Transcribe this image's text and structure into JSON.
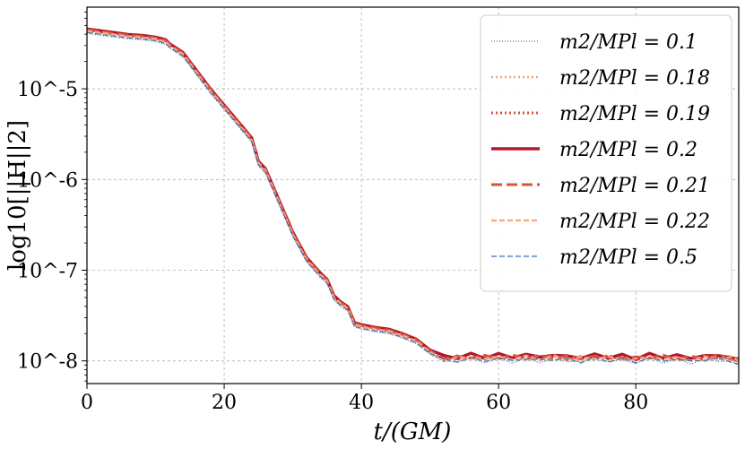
{
  "chart_data": {
    "type": "line",
    "xlabel": "t/(GM)",
    "ylabel": "log10[||H||2]",
    "xlim": [
      0,
      95
    ],
    "ylim": [
      -8.25,
      -4.1
    ],
    "yscale": "log",
    "grid": true,
    "legend_position": "top-right",
    "x_ticks": [
      0,
      20,
      40,
      60,
      80
    ],
    "y_ticks": [
      {
        "value": -5,
        "label": "10^-5"
      },
      {
        "value": -6,
        "label": "10^-6"
      },
      {
        "value": -7,
        "label": "10^-7"
      },
      {
        "value": -8,
        "label": "10^-8"
      }
    ],
    "series": [
      {
        "name": "m2/MPl = 0.1",
        "color": "#3a6fb5",
        "style": "dotted",
        "width": 1.2,
        "offset": -0.03
      },
      {
        "name": "m2/MPl = 0.18",
        "color": "#f1a57c",
        "style": "dotted",
        "width": 2.4,
        "offset": -0.01
      },
      {
        "name": "m2/MPl = 0.19",
        "color": "#d8543f",
        "style": "dotted",
        "width": 3.0,
        "offset": 0.005
      },
      {
        "name": "m2/MPl = 0.2",
        "color": "#b2182b",
        "style": "solid",
        "width": 3.4,
        "offset": 0.02
      },
      {
        "name": "m2/MPl = 0.21",
        "color": "#d8543f",
        "style": "dashed",
        "width": 3.0,
        "offset": 0.01
      },
      {
        "name": "m2/MPl = 0.22",
        "color": "#f4a582",
        "style": "dashed",
        "width": 2.2,
        "offset": 0.0
      },
      {
        "name": "m2/MPl = 0.5",
        "color": "#3a6fb5",
        "style": "dashed",
        "width": 1.2,
        "offset": -0.02
      }
    ],
    "base_curve": [
      [
        0,
        -4.36
      ],
      [
        2,
        -4.38
      ],
      [
        4,
        -4.4
      ],
      [
        6,
        -4.42
      ],
      [
        8,
        -4.43
      ],
      [
        10,
        -4.45
      ],
      [
        11.5,
        -4.48
      ],
      [
        12,
        -4.52
      ],
      [
        14,
        -4.62
      ],
      [
        16,
        -4.82
      ],
      [
        18,
        -5.02
      ],
      [
        20,
        -5.2
      ],
      [
        22,
        -5.38
      ],
      [
        24,
        -5.56
      ],
      [
        25,
        -5.82
      ],
      [
        26,
        -5.9
      ],
      [
        28,
        -6.25
      ],
      [
        30,
        -6.6
      ],
      [
        32,
        -6.88
      ],
      [
        34,
        -7.05
      ],
      [
        35,
        -7.12
      ],
      [
        36,
        -7.3
      ],
      [
        37,
        -7.37
      ],
      [
        38,
        -7.42
      ],
      [
        39,
        -7.6
      ],
      [
        40,
        -7.62
      ],
      [
        42,
        -7.65
      ],
      [
        44,
        -7.67
      ],
      [
        46,
        -7.72
      ],
      [
        48,
        -7.78
      ],
      [
        50,
        -7.9
      ],
      [
        52,
        -7.98
      ],
      [
        54,
        -7.97
      ],
      [
        56,
        -7.96
      ],
      [
        58,
        -7.97
      ],
      [
        60,
        -7.96
      ],
      [
        62,
        -7.97
      ],
      [
        64,
        -7.96
      ],
      [
        66,
        -7.97
      ],
      [
        68,
        -7.96
      ],
      [
        70,
        -7.97
      ],
      [
        72,
        -7.98
      ],
      [
        74,
        -7.96
      ],
      [
        76,
        -7.97
      ],
      [
        78,
        -7.97
      ],
      [
        80,
        -7.98
      ],
      [
        82,
        -7.96
      ],
      [
        84,
        -7.97
      ],
      [
        86,
        -7.97
      ],
      [
        88,
        -7.98
      ],
      [
        90,
        -7.97
      ],
      [
        92,
        -7.96
      ],
      [
        94,
        -7.98
      ],
      [
        95,
        -8.0
      ]
    ]
  }
}
